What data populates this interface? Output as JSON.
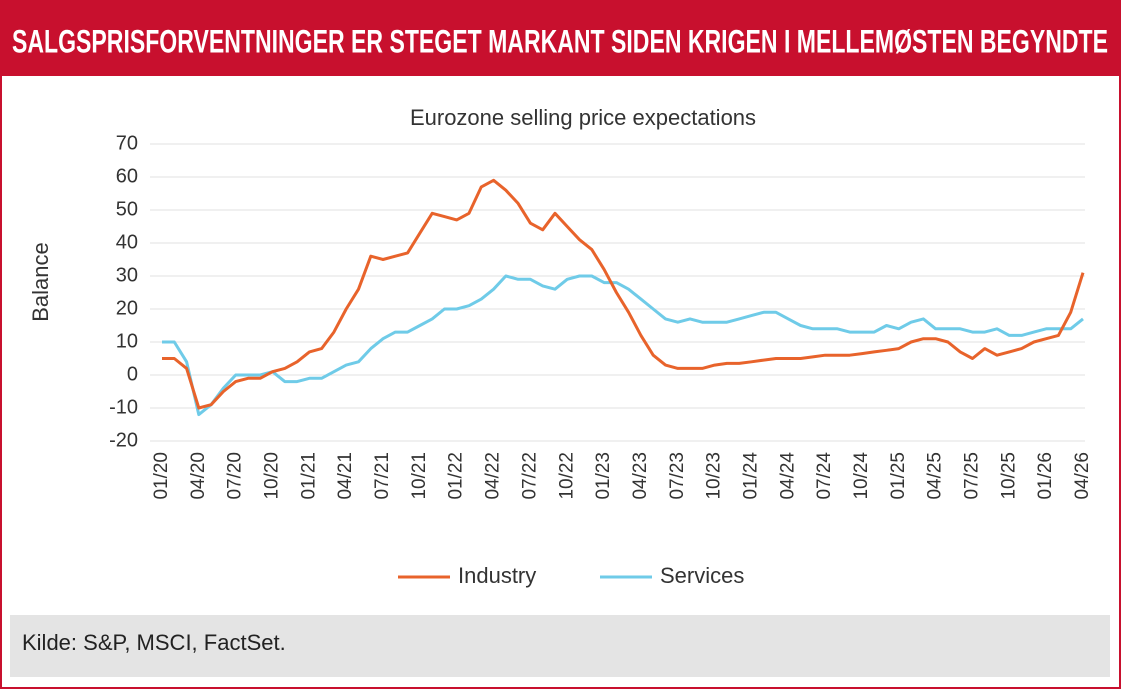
{
  "header": {
    "title": "SALGSPRISFORVENTNINGER ER STEGET MARKANT SIDEN KRIGEN I MELLEMØSTEN BEGYNDTE"
  },
  "chart_data": {
    "type": "line",
    "title": "Eurozone selling price expectations",
    "y_label": "Balance",
    "categories": [
      "01/20",
      null,
      null,
      "04/20",
      null,
      null,
      "07/20",
      null,
      null,
      "10/20",
      null,
      null,
      "01/21",
      null,
      null,
      "04/21",
      null,
      null,
      "07/21",
      null,
      null,
      "10/21",
      null,
      null,
      "01/22",
      null,
      null,
      "04/22",
      null,
      null,
      "07/22",
      null,
      null,
      "10/22",
      null,
      null,
      "01/23",
      null,
      null,
      "04/23",
      null,
      null,
      "07/23",
      null,
      null,
      "10/23",
      null,
      null,
      "01/24",
      null,
      null,
      "04/24",
      null,
      null,
      "07/24",
      null,
      null,
      "10/24",
      null,
      null,
      "01/25",
      null,
      null,
      "04/25",
      null,
      null,
      "07/25",
      null,
      null,
      "10/25",
      null,
      null,
      "01/26",
      null,
      null,
      "04/26"
    ],
    "series": [
      {
        "name": "Industry",
        "color": "#e8632b",
        "values": [
          5,
          5,
          2,
          -10,
          -9,
          -5,
          -2,
          -1,
          -1,
          1,
          2,
          4,
          7,
          8,
          13,
          20,
          26,
          36,
          35,
          36,
          37,
          43,
          49,
          48,
          47,
          49,
          57,
          59,
          56,
          52,
          46,
          44,
          49,
          45,
          41,
          38,
          32,
          25,
          19,
          12,
          6,
          3,
          2,
          2,
          2,
          3,
          3.5,
          3.5,
          4,
          4.5,
          5,
          5,
          5,
          5.5,
          6,
          6,
          6,
          6.5,
          7,
          7.5,
          8,
          10,
          11,
          11,
          10,
          7,
          5,
          8,
          6,
          7,
          8,
          10,
          11,
          12,
          19,
          31
        ]
      },
      {
        "name": "Services",
        "color": "#6fcbe8",
        "values": [
          10,
          10,
          4,
          -12,
          -9,
          -4,
          0,
          0,
          0,
          1,
          -2,
          -2,
          -1,
          -1,
          1,
          3,
          4,
          8,
          11,
          13,
          13,
          15,
          17,
          20,
          20,
          21,
          23,
          26,
          30,
          29,
          29,
          27,
          26,
          29,
          30,
          30,
          28,
          28,
          26,
          23,
          20,
          17,
          16,
          17,
          16,
          16,
          16,
          17,
          18,
          19,
          19,
          17,
          15,
          14,
          14,
          14,
          13,
          13,
          13,
          15,
          14,
          16,
          17,
          14,
          14,
          14,
          13,
          13,
          14,
          12,
          12,
          13,
          14,
          14,
          14,
          17
        ]
      }
    ],
    "ylim": [
      -20,
      70
    ],
    "yticks": [
      -20,
      -10,
      0,
      10,
      20,
      30,
      40,
      50,
      60,
      70
    ],
    "grid": true
  },
  "footer": {
    "source": "Kilde:  S&P, MSCI, FactSet."
  }
}
